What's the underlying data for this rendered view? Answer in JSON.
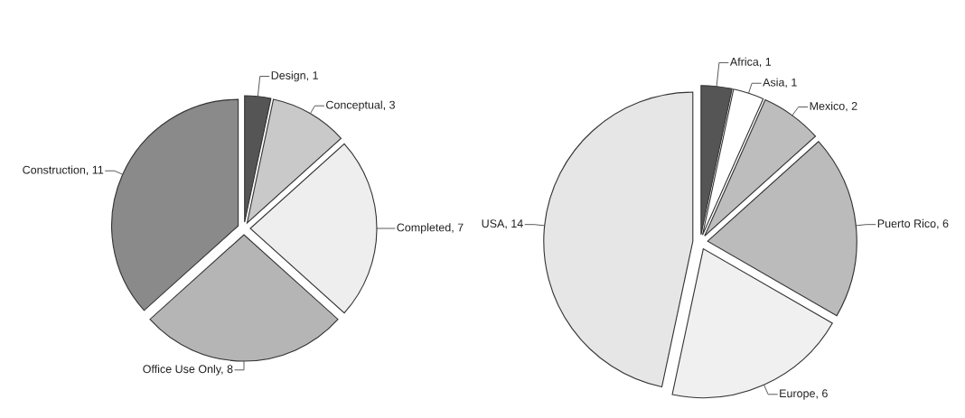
{
  "chart_data": [
    {
      "type": "pie",
      "categories": [
        "Design, 1",
        "Conceptual, 3",
        "Completed, 7",
        "Office Use Only, 8",
        "Construction, 11"
      ],
      "values": [
        1,
        3,
        7,
        8,
        11
      ],
      "colors": [
        "#555555",
        "#c9c9c9",
        "#eeeeee",
        "#b5b5b5",
        "#8a8a8a"
      ],
      "legend": false
    },
    {
      "type": "pie",
      "categories": [
        "Africa, 1",
        "Asia, 1",
        "Mexico, 2",
        "Puerto Rico, 6",
        "Europe, 6",
        "USA, 14"
      ],
      "values": [
        1,
        1,
        2,
        6,
        6,
        14
      ],
      "colors": [
        "#555555",
        "#ffffff",
        "#bdbdbd",
        "#bbbbbb",
        "#f0f0f0",
        "#e6e6e6"
      ],
      "legend": false
    }
  ]
}
